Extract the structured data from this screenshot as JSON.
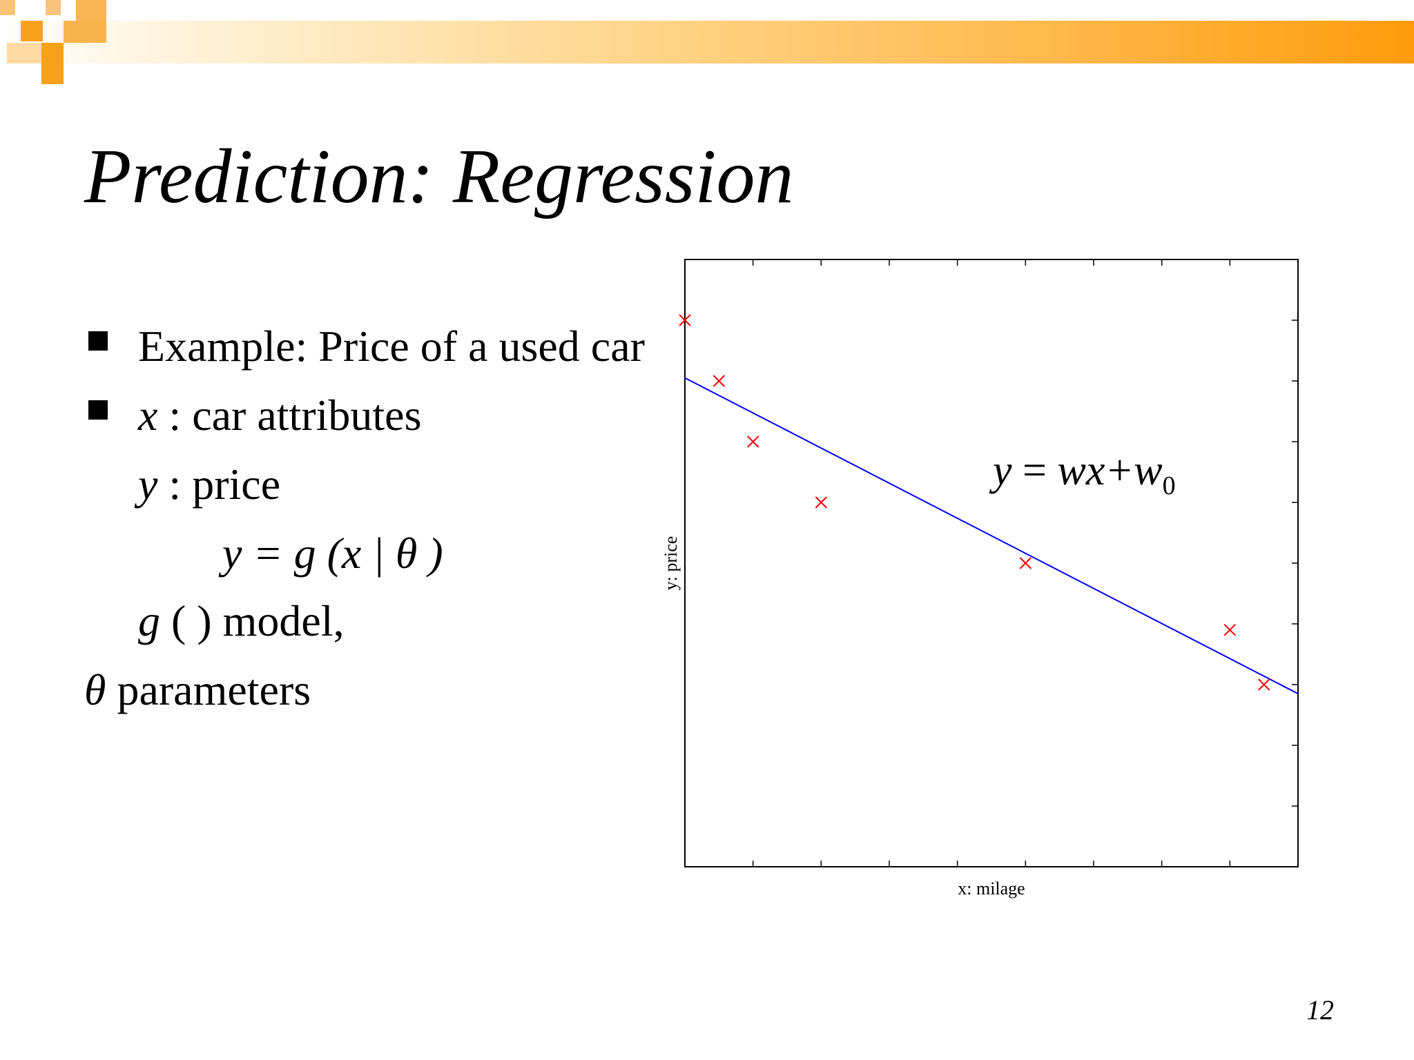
{
  "slide": {
    "title": "Prediction: Regression",
    "page_number": "12",
    "bullets": {
      "b1": "Example: Price of a used car",
      "b2_var": "x",
      "b2_rest": " : car attributes",
      "b3_var": "y",
      "b3_rest": " : price",
      "b4": "y = g (x | θ )",
      "b5_g": "g",
      "b5_rest": " ( ) model,",
      "b6_theta": "θ",
      "b6_rest": " parameters"
    }
  },
  "chart_data": {
    "type": "scatter",
    "xlabel": "x: milage",
    "ylabel": "y: price",
    "xlim": [
      0,
      9
    ],
    "ylim": [
      0,
      10
    ],
    "grid": false,
    "series": [
      {
        "values": [
          [
            0,
            9
          ],
          [
            0.5,
            8
          ],
          [
            1,
            7
          ],
          [
            2,
            6
          ],
          [
            5,
            5
          ],
          [
            8,
            3.9
          ],
          [
            8.5,
            3
          ]
        ]
      }
    ],
    "fit_line": {
      "y_at_xmin": 8.05,
      "y_at_xmax": 2.85
    },
    "annotation": {
      "lhs": "y",
      "eq": " = ",
      "rhs": "wx+w",
      "sub": "0"
    },
    "colors": {
      "points": "#ff0000",
      "line": "#0000ff"
    }
  }
}
